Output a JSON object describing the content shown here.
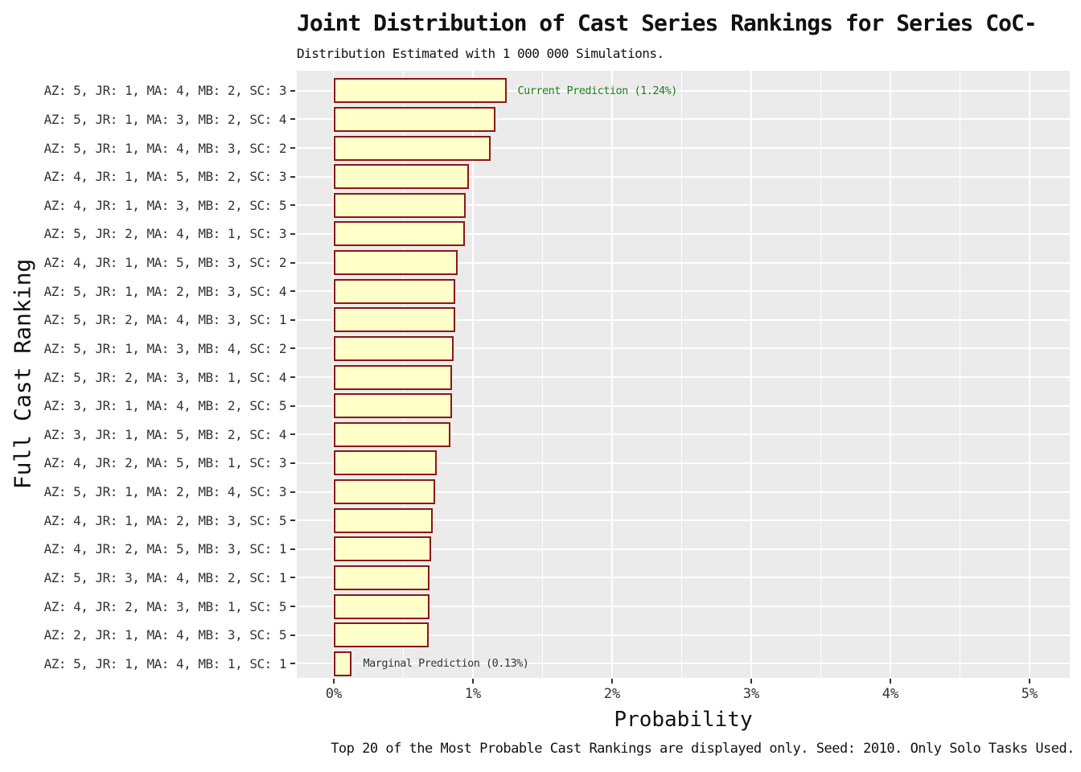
{
  "chart_data": {
    "type": "bar",
    "orientation": "horizontal",
    "title": "Joint Distribution of Cast Series Rankings for Series CoC-",
    "subtitle": "Distribution Estimated with 1 000 000 Simulations.",
    "xlabel": "Probability",
    "ylabel": "Full Cast Ranking",
    "caption": "Top 20 of the Most Probable Cast Rankings are displayed only. Seed: 2010. Only Solo Tasks Used.",
    "grid": true,
    "legend": "none",
    "xlim_percent": [
      0,
      5.5
    ],
    "x_major_ticks_percent": [
      0,
      1,
      2,
      3,
      4,
      5
    ],
    "x_tick_labels": [
      "0%",
      "1%",
      "2%",
      "3%",
      "4%",
      "5%"
    ],
    "x_minor_ticks_percent": [
      0.5,
      1.5,
      2.5,
      3.5,
      4.5
    ],
    "categories": [
      "AZ: 5, JR: 1, MA: 4, MB: 2, SC: 3",
      "AZ: 5, JR: 1, MA: 3, MB: 2, SC: 4",
      "AZ: 5, JR: 1, MA: 4, MB: 3, SC: 2",
      "AZ: 4, JR: 1, MA: 5, MB: 2, SC: 3",
      "AZ: 4, JR: 1, MA: 3, MB: 2, SC: 5",
      "AZ: 5, JR: 2, MA: 4, MB: 1, SC: 3",
      "AZ: 4, JR: 1, MA: 5, MB: 3, SC: 2",
      "AZ: 5, JR: 1, MA: 2, MB: 3, SC: 4",
      "AZ: 5, JR: 2, MA: 4, MB: 3, SC: 1",
      "AZ: 5, JR: 1, MA: 3, MB: 4, SC: 2",
      "AZ: 5, JR: 2, MA: 3, MB: 1, SC: 4",
      "AZ: 3, JR: 1, MA: 4, MB: 2, SC: 5",
      "AZ: 3, JR: 1, MA: 5, MB: 2, SC: 4",
      "AZ: 4, JR: 2, MA: 5, MB: 1, SC: 3",
      "AZ: 5, JR: 1, MA: 2, MB: 4, SC: 3",
      "AZ: 4, JR: 1, MA: 2, MB: 3, SC: 5",
      "AZ: 4, JR: 2, MA: 5, MB: 3, SC: 1",
      "AZ: 5, JR: 3, MA: 4, MB: 2, SC: 1",
      "AZ: 4, JR: 2, MA: 3, MB: 1, SC: 5",
      "AZ: 2, JR: 1, MA: 4, MB: 3, SC: 5",
      "AZ: 5, JR: 1, MA: 4, MB: 1, SC: 1"
    ],
    "values_percent": [
      1.24,
      1.16,
      1.13,
      0.97,
      0.95,
      0.94,
      0.89,
      0.87,
      0.87,
      0.86,
      0.85,
      0.85,
      0.84,
      0.74,
      0.73,
      0.71,
      0.7,
      0.69,
      0.69,
      0.68,
      0.13
    ],
    "annotations": [
      {
        "row_index": 0,
        "label": "Current Prediction (1.24%)",
        "color": "#1E7D1E"
      },
      {
        "row_index": 20,
        "label": "Marginal Prediction (0.13%)",
        "color": "#333333"
      }
    ],
    "colors": {
      "bar_fill": "#FFFFC9",
      "bar_border": "#8B1717",
      "panel_background": "#EBEBEB",
      "gridline": "#FFFFFF",
      "annotation_green": "#1E7D1E",
      "axis_text": "#333333",
      "text": "#111111"
    }
  }
}
